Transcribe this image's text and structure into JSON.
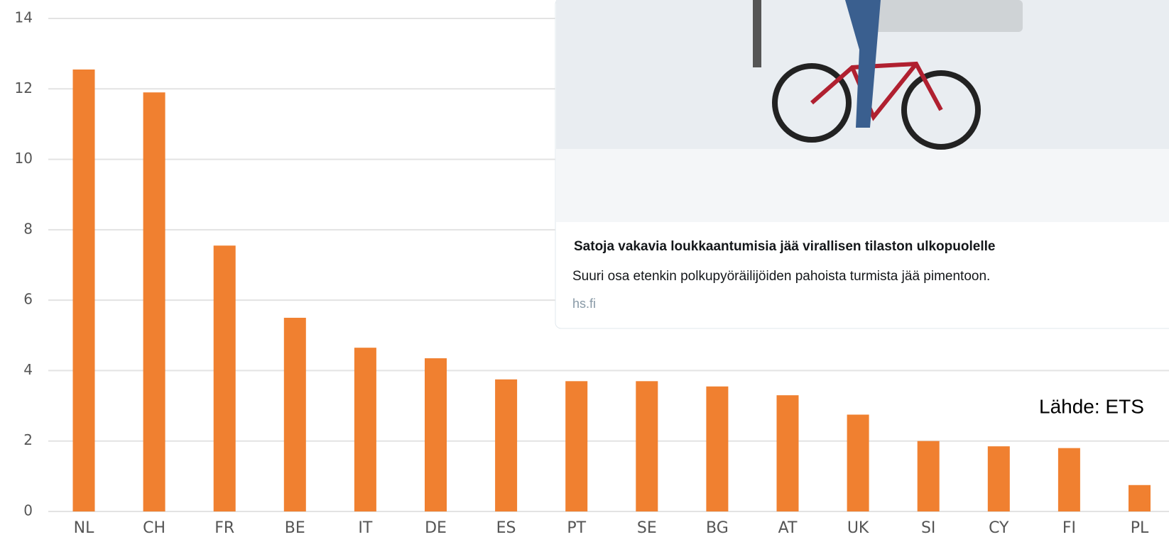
{
  "chart_data": {
    "type": "bar",
    "categories": [
      "NL",
      "CH",
      "FR",
      "BE",
      "IT",
      "DE",
      "ES",
      "PT",
      "SE",
      "BG",
      "AT",
      "UK",
      "SI",
      "CY",
      "FI",
      "PL"
    ],
    "values": [
      12.55,
      11.9,
      7.55,
      5.5,
      4.65,
      4.35,
      3.75,
      3.7,
      3.7,
      3.55,
      3.3,
      2.75,
      2.0,
      1.85,
      1.8,
      0.75
    ],
    "color": "#f08030",
    "ylim": [
      0,
      14
    ],
    "yticks": [
      0,
      2,
      4,
      6,
      8,
      10,
      12,
      14
    ],
    "grid": true
  },
  "card": {
    "title": "Satoja vakavia loukkaantumisia jää virallisen tilaston ulkopuolelle",
    "description": "Suuri osa etenkin polkupyöräilijöiden pahoista turmista jää pimentoon.",
    "domain": "hs.fi"
  },
  "source": "Lähde: ETS"
}
